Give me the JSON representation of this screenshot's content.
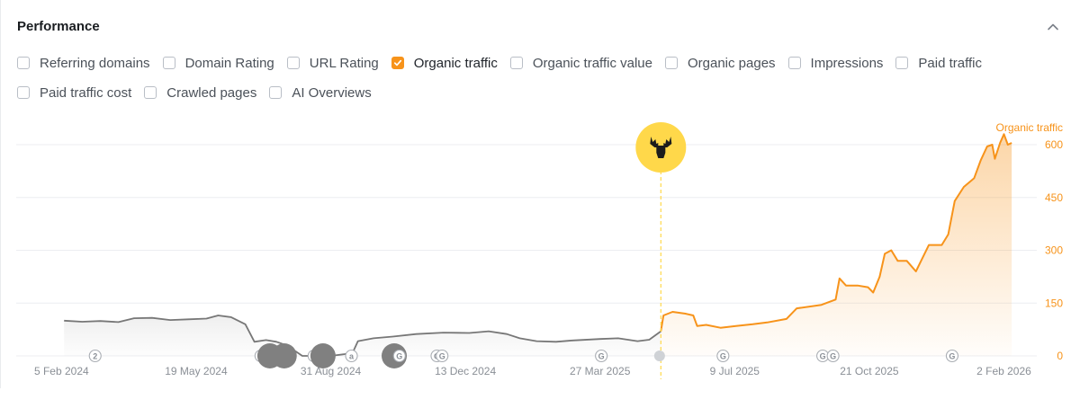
{
  "header": {
    "title": "Performance",
    "collapse_icon": "chevron-up-icon"
  },
  "metrics": [
    {
      "id": "referring-domains",
      "label": "Referring domains",
      "checked": false
    },
    {
      "id": "domain-rating",
      "label": "Domain Rating",
      "checked": false
    },
    {
      "id": "url-rating",
      "label": "URL Rating",
      "checked": false
    },
    {
      "id": "organic-traffic",
      "label": "Organic traffic",
      "checked": true
    },
    {
      "id": "organic-traffic-value",
      "label": "Organic traffic value",
      "checked": false
    },
    {
      "id": "organic-pages",
      "label": "Organic pages",
      "checked": false
    },
    {
      "id": "impressions",
      "label": "Impressions",
      "checked": false
    },
    {
      "id": "paid-traffic",
      "label": "Paid traffic",
      "checked": false
    },
    {
      "id": "paid-traffic-cost",
      "label": "Paid traffic cost",
      "checked": false
    },
    {
      "id": "crawled-pages",
      "label": "Crawled pages",
      "checked": false
    },
    {
      "id": "ai-overviews",
      "label": "AI Overviews",
      "checked": false
    }
  ],
  "colors": {
    "accent": "#f7931a",
    "gray_line": "#777777",
    "marker_gray": "#808080",
    "highlight": "#ffd84a",
    "grid": "#eceef1"
  },
  "chart_data": {
    "type": "line",
    "series": [
      {
        "name": "Organic traffic",
        "points": [
          [
            "2024-02-07",
            100
          ],
          [
            "2024-02-21",
            97
          ],
          [
            "2024-03-06",
            99
          ],
          [
            "2024-03-20",
            96
          ],
          [
            "2024-04-01",
            107
          ],
          [
            "2024-04-15",
            108
          ],
          [
            "2024-04-29",
            102
          ],
          [
            "2024-05-13",
            104
          ],
          [
            "2024-05-27",
            106
          ],
          [
            "2024-06-05",
            115
          ],
          [
            "2024-06-15",
            110
          ],
          [
            "2024-06-26",
            90
          ],
          [
            "2024-07-03",
            40
          ],
          [
            "2024-07-12",
            45
          ],
          [
            "2024-07-20",
            40
          ],
          [
            "2024-07-28",
            30
          ],
          [
            "2024-08-03",
            15
          ],
          [
            "2024-08-09",
            0
          ],
          [
            "2024-08-20",
            0
          ],
          [
            "2024-08-31",
            0
          ],
          [
            "2024-09-11",
            5
          ],
          [
            "2024-09-17",
            10
          ],
          [
            "2024-09-21",
            42
          ],
          [
            "2024-10-03",
            50
          ],
          [
            "2024-10-18",
            55
          ],
          [
            "2024-11-05",
            62
          ],
          [
            "2024-11-26",
            66
          ],
          [
            "2024-12-16",
            65
          ],
          [
            "2024-12-31",
            70
          ],
          [
            "2025-01-14",
            62
          ],
          [
            "2025-01-24",
            50
          ],
          [
            "2025-02-06",
            42
          ],
          [
            "2025-02-21",
            40
          ],
          [
            "2025-03-06",
            44
          ],
          [
            "2025-03-27",
            48
          ],
          [
            "2025-04-10",
            50
          ],
          [
            "2025-04-25",
            42
          ],
          [
            "2025-05-04",
            46
          ],
          [
            "2025-05-13",
            70
          ],
          [
            "2025-05-15",
            115
          ],
          [
            "2025-05-22",
            125
          ],
          [
            "2025-06-01",
            120
          ],
          [
            "2025-06-07",
            115
          ],
          [
            "2025-06-10",
            85
          ],
          [
            "2025-06-17",
            88
          ],
          [
            "2025-06-28",
            80
          ],
          [
            "2025-07-10",
            85
          ],
          [
            "2025-07-23",
            90
          ],
          [
            "2025-08-03",
            95
          ],
          [
            "2025-08-18",
            105
          ],
          [
            "2025-08-26",
            135
          ],
          [
            "2025-09-14",
            145
          ],
          [
            "2025-09-25",
            160
          ],
          [
            "2025-09-28",
            220
          ],
          [
            "2025-10-03",
            200
          ],
          [
            "2025-10-12",
            200
          ],
          [
            "2025-10-20",
            195
          ],
          [
            "2025-10-24",
            180
          ],
          [
            "2025-10-29",
            225
          ],
          [
            "2025-11-02",
            290
          ],
          [
            "2025-11-07",
            300
          ],
          [
            "2025-11-12",
            270
          ],
          [
            "2025-11-19",
            270
          ],
          [
            "2025-11-26",
            240
          ],
          [
            "2025-11-30",
            270
          ],
          [
            "2025-12-06",
            315
          ],
          [
            "2025-12-16",
            315
          ],
          [
            "2025-12-21",
            345
          ],
          [
            "2025-12-26",
            440
          ],
          [
            "2026-01-02",
            480
          ],
          [
            "2026-01-10",
            505
          ],
          [
            "2026-01-15",
            555
          ],
          [
            "2026-01-20",
            595
          ],
          [
            "2026-01-24",
            600
          ],
          [
            "2026-01-26",
            560
          ],
          [
            "2026-01-30",
            605
          ],
          [
            "2026-02-02",
            630
          ],
          [
            "2026-02-05",
            600
          ],
          [
            "2026-02-08",
            605
          ]
        ]
      }
    ],
    "x_ticks": [
      {
        "date": "2024-02-05",
        "label": "5 Feb 2024"
      },
      {
        "date": "2024-05-19",
        "label": "19 May 2024"
      },
      {
        "date": "2024-08-31",
        "label": "31 Aug 2024"
      },
      {
        "date": "2024-12-13",
        "label": "13 Dec 2024"
      },
      {
        "date": "2025-03-27",
        "label": "27 Mar 2025"
      },
      {
        "date": "2025-07-09",
        "label": "9 Jul 2025"
      },
      {
        "date": "2025-10-21",
        "label": "21 Oct 2025"
      },
      {
        "date": "2026-02-02",
        "label": "2 Feb 2026"
      }
    ],
    "x_range": [
      "2024-01-01",
      "2026-02-26"
    ],
    "ylim": [
      0,
      600
    ],
    "y_ticks": [
      {
        "value": 0,
        "label": "0"
      },
      {
        "value": 150,
        "label": "150"
      },
      {
        "value": 300,
        "label": "300"
      },
      {
        "value": 450,
        "label": "450"
      },
      {
        "value": 600,
        "label": "600"
      }
    ],
    "y_axis_title": "Organic traffic",
    "y_axis_position": "right",
    "highlight_start": "2025-05-13",
    "grid": true,
    "legend": "none",
    "annotation": {
      "date": "2025-05-13",
      "icon": "moose-icon"
    },
    "event_markers": [
      {
        "date": "2024-03-02",
        "label": "2",
        "size": "small"
      },
      {
        "date": "2024-07-08",
        "label": "G",
        "size": "small"
      },
      {
        "date": "2024-07-15",
        "label": "",
        "size": "large"
      },
      {
        "date": "2024-07-26",
        "label": "",
        "size": "large"
      },
      {
        "date": "2024-08-18",
        "label": "2",
        "size": "small"
      },
      {
        "date": "2024-08-25",
        "label": "",
        "size": "large"
      },
      {
        "date": "2024-09-16",
        "label": "a",
        "size": "small"
      },
      {
        "date": "2024-10-19",
        "label": "",
        "size": "large"
      },
      {
        "date": "2024-10-23",
        "label": "G",
        "size": "small"
      },
      {
        "date": "2024-11-21",
        "label": "G",
        "size": "small"
      },
      {
        "date": "2024-11-25",
        "label": "G",
        "size": "small"
      },
      {
        "date": "2025-03-28",
        "label": "G",
        "size": "small"
      },
      {
        "date": "2025-05-12",
        "label": "",
        "size": "dot"
      },
      {
        "date": "2025-06-30",
        "label": "G",
        "size": "small"
      },
      {
        "date": "2025-09-15",
        "label": "G",
        "size": "small"
      },
      {
        "date": "2025-09-23",
        "label": "G",
        "size": "small"
      },
      {
        "date": "2025-12-24",
        "label": "G",
        "size": "small"
      }
    ]
  }
}
